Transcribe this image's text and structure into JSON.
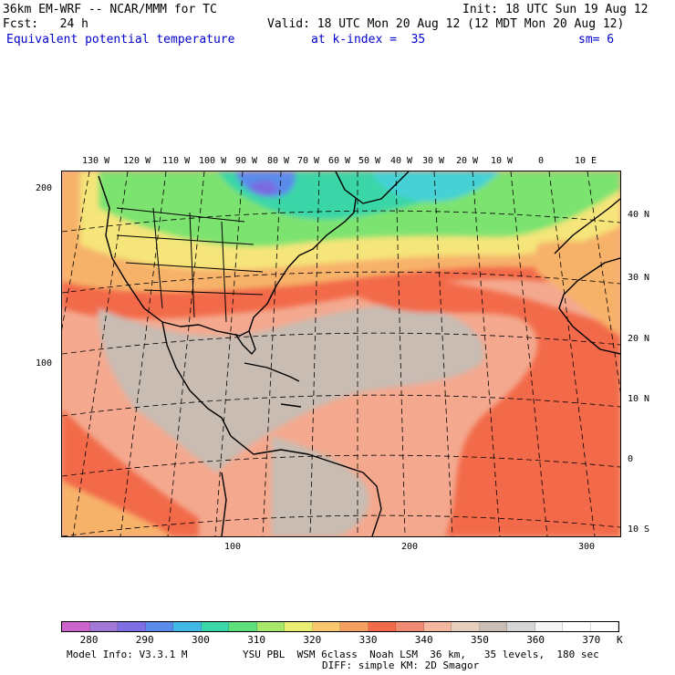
{
  "header": {
    "line1_left": "36km EM-WRF -- NCAR/MMM for TC",
    "line1_right": "Init: 18 UTC Sun 19 Aug 12",
    "line2_left": "Fcst:   24 h",
    "line2_right": "Valid: 18 UTC Mon 20 Aug 12 (12 MDT Mon 20 Aug 12)",
    "line3_field": "Equivalent potential temperature",
    "line3_level": "at k-index =  35",
    "line3_smooth": "sm= 6"
  },
  "map": {
    "top_lon_labels": [
      "130 W",
      "120 W",
      "110 W",
      "100 W",
      "90 W",
      "80 W",
      "70 W",
      "60 W",
      "50 W",
      "40 W",
      "30 W",
      "20 W",
      "10 W",
      "0",
      "10 E"
    ],
    "right_lat_labels": [
      "40 N",
      "30 N",
      "20 N",
      "10 N",
      "0",
      "10 S"
    ],
    "left_grid_labels": [
      "200",
      "100"
    ],
    "bottom_grid_labels": [
      "100",
      "200",
      "300"
    ],
    "field_colors": {
      "gray": "#c8bcb3",
      "salmon": "#f4a98f",
      "red": "#f26b4a",
      "orange": "#f7b26a",
      "yellow": "#f5e57a",
      "green": "#7de36f",
      "teal": "#3bd6a8",
      "cyan": "#44d1d6",
      "blue": "#5a8bea",
      "purple": "#7a6be0"
    }
  },
  "colorbar": {
    "colors": [
      "#cc66cc",
      "#a078d6",
      "#7e70e4",
      "#5a8bea",
      "#42b8e4",
      "#3bd6a8",
      "#5ee07a",
      "#a7e86a",
      "#eaed73",
      "#f8c86e",
      "#f5a060",
      "#f26b4a",
      "#ef8b73",
      "#f4b7a0",
      "#e7cfc0",
      "#c9beb6",
      "#d6d6d6",
      "#f6f6f6",
      "#ffffff",
      "#ffffff"
    ],
    "labels": [
      "280",
      "290",
      "300",
      "310",
      "320",
      "330",
      "340",
      "350",
      "360",
      "370"
    ],
    "unit": "K"
  },
  "footer": {
    "model_info": "Model Info: V3.3.1 M",
    "physics": "YSU PBL  WSM 6class  Noah LSM  36 km,   35 levels,  180 sec",
    "diffusion": "DIFF: simple KM: 2D Smagor"
  }
}
